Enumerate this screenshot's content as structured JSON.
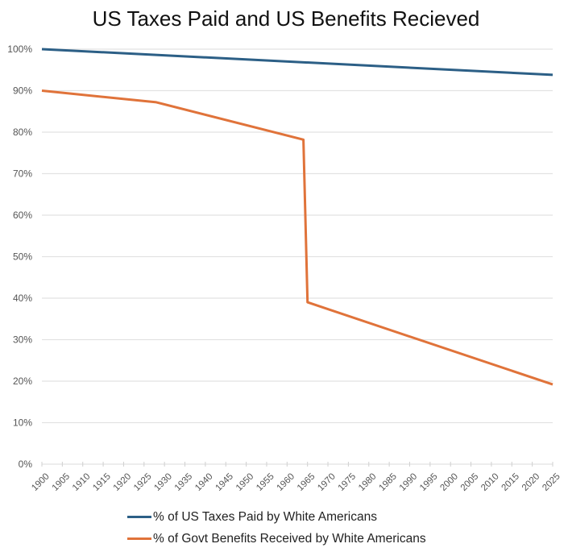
{
  "chart_data": {
    "type": "line",
    "title": "US Taxes Paid and US Benefits Recieved",
    "xlabel": "",
    "ylabel": "",
    "xlim": [
      1900,
      2025
    ],
    "ylim": [
      0,
      100
    ],
    "y_ticks": [
      "0%",
      "10%",
      "20%",
      "30%",
      "40%",
      "50%",
      "60%",
      "70%",
      "80%",
      "90%",
      "100%"
    ],
    "y_tick_values": [
      0,
      10,
      20,
      30,
      40,
      50,
      60,
      70,
      80,
      90,
      100
    ],
    "x_ticks": [
      "1900",
      "1905",
      "1910",
      "1915",
      "1920",
      "1925",
      "1930",
      "1935",
      "1940",
      "1945",
      "1950",
      "1955",
      "1960",
      "1965",
      "1970",
      "1975",
      "1980",
      "1985",
      "1990",
      "1995",
      "2000",
      "2005",
      "2010",
      "2015",
      "2020",
      "2025"
    ],
    "grid": true,
    "legend_position": "bottom",
    "series": [
      {
        "name": "% of US Taxes Paid by White Americans",
        "color": "#2c5f86",
        "points": [
          [
            1900,
            100
          ],
          [
            2025,
            93.8
          ]
        ]
      },
      {
        "name": "% of Govt Benefits Received by White Americans",
        "color": "#e0733a",
        "points": [
          [
            1900,
            90
          ],
          [
            1928,
            87.2
          ],
          [
            1964,
            78.2
          ],
          [
            1965,
            39
          ],
          [
            2025,
            19.2
          ]
        ]
      }
    ]
  }
}
